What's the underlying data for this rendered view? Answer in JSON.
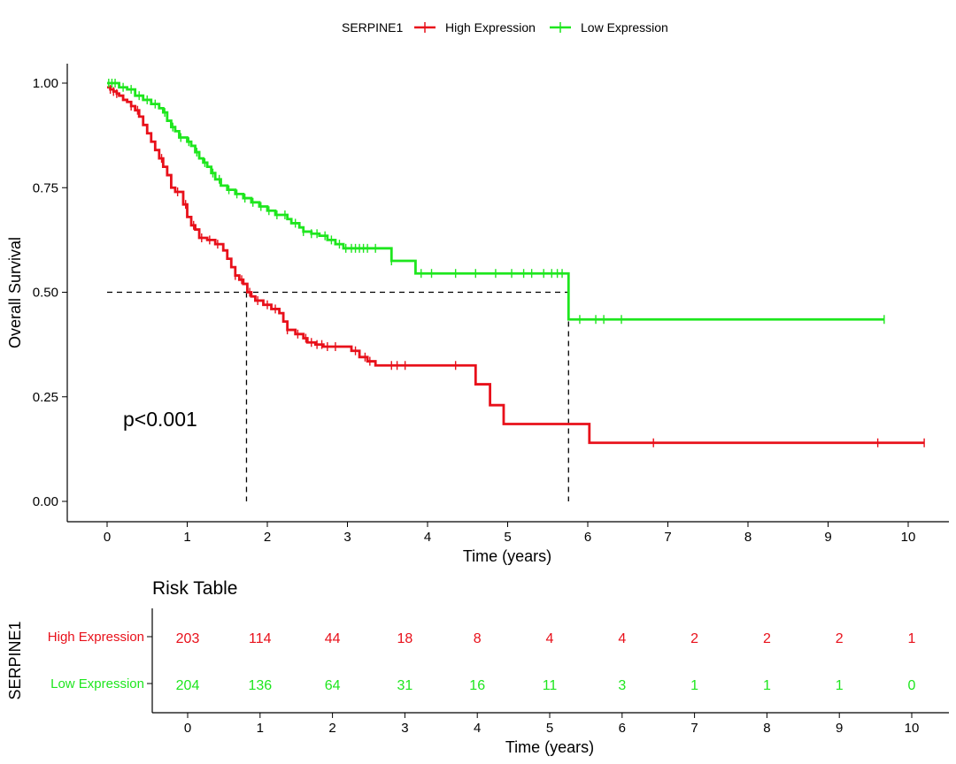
{
  "chart_data": {
    "type": "line",
    "subtype": "kaplan-meier",
    "legend": {
      "title": "SERPINE1",
      "placement": "top"
    },
    "xlabel": "Time (years)",
    "ylabel": "Overall Survival",
    "xlim": [
      -0.5,
      10.5
    ],
    "ylim": [
      -0.05,
      1.05
    ],
    "x_ticks": [
      0,
      1,
      2,
      3,
      4,
      5,
      6,
      7,
      8,
      9,
      10
    ],
    "y_ticks": [
      "0.00",
      "0.25",
      "0.50",
      "0.75",
      "1.00"
    ],
    "annotation": "p<0.001",
    "median_line": {
      "y": 0.5,
      "x_values": [
        1.74,
        5.76
      ]
    },
    "series": [
      {
        "name": "High Expression",
        "color": "#e8101a",
        "steps": [
          [
            0,
            0.99
          ],
          [
            0.04,
            0.985
          ],
          [
            0.08,
            0.98
          ],
          [
            0.12,
            0.975
          ],
          [
            0.15,
            0.97
          ],
          [
            0.2,
            0.96
          ],
          [
            0.25,
            0.955
          ],
          [
            0.3,
            0.945
          ],
          [
            0.35,
            0.935
          ],
          [
            0.4,
            0.92
          ],
          [
            0.45,
            0.9
          ],
          [
            0.5,
            0.88
          ],
          [
            0.55,
            0.86
          ],
          [
            0.6,
            0.84
          ],
          [
            0.65,
            0.82
          ],
          [
            0.7,
            0.8
          ],
          [
            0.75,
            0.78
          ],
          [
            0.8,
            0.75
          ],
          [
            0.85,
            0.74
          ],
          [
            0.95,
            0.71
          ],
          [
            1.0,
            0.68
          ],
          [
            1.05,
            0.66
          ],
          [
            1.1,
            0.65
          ],
          [
            1.15,
            0.63
          ],
          [
            1.25,
            0.625
          ],
          [
            1.35,
            0.615
          ],
          [
            1.45,
            0.6
          ],
          [
            1.5,
            0.58
          ],
          [
            1.55,
            0.56
          ],
          [
            1.6,
            0.54
          ],
          [
            1.65,
            0.53
          ],
          [
            1.7,
            0.52
          ],
          [
            1.75,
            0.5
          ],
          [
            1.8,
            0.49
          ],
          [
            1.85,
            0.48
          ],
          [
            1.95,
            0.47
          ],
          [
            2.05,
            0.46
          ],
          [
            2.15,
            0.45
          ],
          [
            2.2,
            0.43
          ],
          [
            2.25,
            0.41
          ],
          [
            2.35,
            0.4
          ],
          [
            2.45,
            0.39
          ],
          [
            2.5,
            0.38
          ],
          [
            2.6,
            0.375
          ],
          [
            2.7,
            0.37
          ],
          [
            3.05,
            0.36
          ],
          [
            3.15,
            0.345
          ],
          [
            3.25,
            0.335
          ],
          [
            3.35,
            0.325
          ],
          [
            4.6,
            0.28
          ],
          [
            4.78,
            0.23
          ],
          [
            4.95,
            0.185
          ],
          [
            6.02,
            0.14
          ],
          [
            10.2,
            0.14
          ]
        ],
        "censors": [
          0.04,
          0.08,
          0.12,
          0.3,
          0.38,
          0.68,
          0.88,
          0.98,
          1.08,
          1.18,
          1.28,
          1.38,
          1.6,
          1.68,
          1.78,
          1.88,
          2.0,
          2.1,
          2.25,
          2.38,
          2.48,
          2.55,
          2.62,
          2.68,
          2.75,
          2.85,
          3.1,
          3.22,
          3.28,
          3.55,
          3.62,
          3.72,
          4.35,
          6.82,
          9.62,
          10.2
        ]
      },
      {
        "name": "Low Expression",
        "color": "#1ee61e",
        "steps": [
          [
            0,
            1.0
          ],
          [
            0.15,
            0.99
          ],
          [
            0.25,
            0.985
          ],
          [
            0.35,
            0.97
          ],
          [
            0.45,
            0.96
          ],
          [
            0.55,
            0.95
          ],
          [
            0.65,
            0.94
          ],
          [
            0.7,
            0.93
          ],
          [
            0.75,
            0.91
          ],
          [
            0.8,
            0.895
          ],
          [
            0.85,
            0.885
          ],
          [
            0.9,
            0.87
          ],
          [
            1.0,
            0.86
          ],
          [
            1.05,
            0.85
          ],
          [
            1.1,
            0.835
          ],
          [
            1.15,
            0.82
          ],
          [
            1.2,
            0.81
          ],
          [
            1.25,
            0.8
          ],
          [
            1.3,
            0.785
          ],
          [
            1.35,
            0.77
          ],
          [
            1.42,
            0.755
          ],
          [
            1.5,
            0.745
          ],
          [
            1.6,
            0.735
          ],
          [
            1.7,
            0.725
          ],
          [
            1.8,
            0.715
          ],
          [
            1.9,
            0.705
          ],
          [
            2.0,
            0.695
          ],
          [
            2.1,
            0.685
          ],
          [
            2.25,
            0.675
          ],
          [
            2.3,
            0.665
          ],
          [
            2.4,
            0.655
          ],
          [
            2.45,
            0.645
          ],
          [
            2.55,
            0.64
          ],
          [
            2.65,
            0.635
          ],
          [
            2.75,
            0.625
          ],
          [
            2.85,
            0.615
          ],
          [
            2.95,
            0.605
          ],
          [
            3.55,
            0.575
          ],
          [
            3.85,
            0.545
          ],
          [
            5.76,
            0.435
          ],
          [
            9.7,
            0.435
          ]
        ],
        "censors": [
          0.02,
          0.06,
          0.1,
          0.2,
          0.3,
          0.4,
          0.5,
          0.6,
          0.72,
          0.82,
          0.92,
          1.02,
          1.12,
          1.22,
          1.32,
          1.4,
          1.52,
          1.62,
          1.72,
          1.82,
          1.92,
          2.02,
          2.12,
          2.22,
          2.35,
          2.45,
          2.55,
          2.62,
          2.72,
          2.8,
          2.9,
          2.98,
          3.05,
          3.1,
          3.15,
          3.2,
          3.25,
          3.35,
          3.55,
          3.92,
          4.05,
          4.35,
          4.6,
          4.85,
          5.05,
          5.2,
          5.3,
          5.45,
          5.55,
          5.62,
          5.68,
          5.9,
          6.1,
          6.2,
          6.42,
          9.7
        ]
      }
    ]
  },
  "risk_table": {
    "title": "Risk Table",
    "ylabel": "SERPINE1",
    "xlabel": "Time (years)",
    "x_ticks": [
      0,
      1,
      2,
      3,
      4,
      5,
      6,
      7,
      8,
      9,
      10
    ],
    "rows": [
      {
        "name": "High Expression",
        "color": "#e8101a",
        "values": [
          203,
          114,
          44,
          18,
          8,
          4,
          4,
          2,
          2,
          2,
          1
        ]
      },
      {
        "name": "Low Expression",
        "color": "#1ee61e",
        "values": [
          204,
          136,
          64,
          31,
          16,
          11,
          3,
          1,
          1,
          1,
          0
        ]
      }
    ]
  }
}
